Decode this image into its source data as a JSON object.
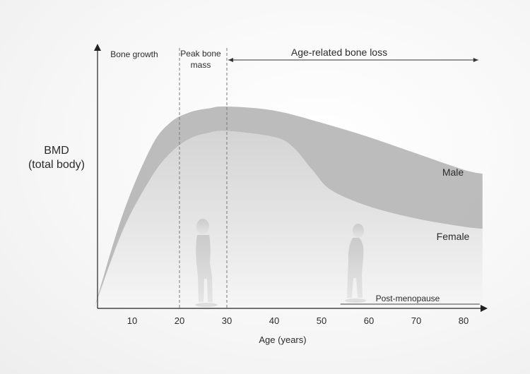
{
  "chart_data": {
    "type": "area",
    "ylabel_lines": [
      "BMD",
      "(total body)"
    ],
    "xlabel": "Age (years)",
    "xlim": [
      2,
      84
    ],
    "x_ticks": [
      10,
      20,
      30,
      40,
      50,
      60,
      70,
      80
    ],
    "grid": false,
    "legend": "none",
    "series": [
      {
        "name": "Male",
        "x": [
          2,
          8,
          14,
          18,
          22,
          26,
          30,
          40,
          50,
          60,
          70,
          80,
          84
        ],
        "values": [
          0.0,
          0.46,
          0.79,
          0.91,
          0.96,
          0.98,
          0.99,
          0.97,
          0.91,
          0.84,
          0.76,
          0.68,
          0.66
        ]
      },
      {
        "name": "Female",
        "x": [
          2,
          8,
          14,
          18,
          22,
          26,
          30,
          40,
          44,
          48,
          52,
          60,
          70,
          80,
          84
        ],
        "values": [
          0.0,
          0.38,
          0.64,
          0.76,
          0.83,
          0.86,
          0.87,
          0.84,
          0.79,
          0.68,
          0.58,
          0.5,
          0.44,
          0.4,
          0.39
        ]
      }
    ],
    "vertical_markers": [
      20,
      30
    ],
    "annotations": {
      "bone_growth": "Bone growth",
      "peak_bone_mass_line1": "Peak bone",
      "peak_bone_mass_line2": "mass",
      "age_related_bone_loss": "Age-related bone loss",
      "age_related_bone_loss_range": [
        30,
        84
      ],
      "post_menopause": "Post-menopause",
      "post_menopause_range": [
        54,
        84
      ]
    },
    "colors": {
      "male_band": "#b0b0b0",
      "female_fill_top": "#d2d2d2",
      "axis": "#222222",
      "text": "#2b2b2b"
    }
  }
}
